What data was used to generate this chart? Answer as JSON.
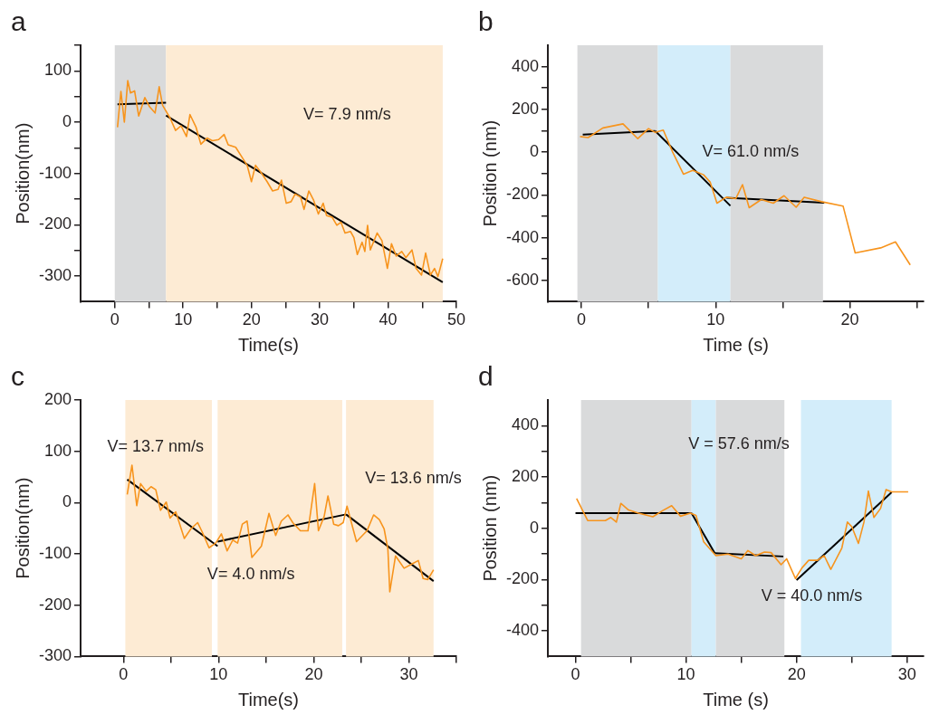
{
  "chart_data": [
    {
      "type": "line",
      "title": "a",
      "xlabel": "Time(s)",
      "ylabel": "Position(nm)",
      "xlim": [
        -5,
        50
      ],
      "ylim": [
        -350,
        150
      ],
      "xticks": [
        0,
        {
          "value": 5,
          "label": null
        },
        10,
        {
          "value": 15,
          "label": null
        },
        20,
        {
          "value": 25,
          "label": null
        },
        30,
        {
          "value": 35,
          "label": null
        },
        40,
        {
          "value": 45,
          "label": null
        },
        50
      ],
      "yticks": [
        {
          "value": 150,
          "label": null
        },
        100,
        {
          "value": 50,
          "label": null
        },
        0,
        {
          "value": -50,
          "label": null
        },
        -100,
        {
          "value": -150,
          "label": null
        },
        -200,
        {
          "value": -250,
          "label": null
        },
        -300
      ],
      "bands": [
        {
          "axis": "x",
          "from": 0,
          "to": 7.5,
          "color": "#d9dadb"
        },
        {
          "axis": "x",
          "from": 7.5,
          "to": 48,
          "color": "#fdebd4"
        }
      ],
      "series": [
        {
          "color": "#f7941d",
          "x": [
            0.4,
            0.9,
            1.4,
            1.9,
            2.3,
            2.9,
            3.5,
            4.4,
            5.1,
            5.9,
            6.5,
            7.0,
            8.1,
            8.9,
            9.7,
            10.5,
            11,
            11.9,
            12.6,
            13.5,
            14.3,
            15.2,
            16,
            16.6,
            17.7,
            18.7,
            19.4,
            20,
            20.6,
            21.4,
            22.3,
            23.1,
            23.9,
            24.4,
            25.1,
            25.8,
            26.4,
            27.2,
            27.7,
            28.4,
            29.1,
            29.8,
            30.5,
            31,
            31.8,
            32.5,
            33.1,
            33.7,
            34.5,
            35,
            35.5,
            36.2,
            36.6,
            37,
            37.4,
            38.4,
            39.1,
            39.9,
            40.5,
            41.2,
            42,
            42.6,
            43.5,
            44.1,
            44.9,
            45.5,
            46.2,
            46.8,
            47.3,
            48
          ],
          "values": [
            -10,
            60,
            0,
            81,
            57,
            61,
            12,
            48,
            30,
            18,
            69,
            33,
            8,
            -16,
            -7,
            -28,
            15,
            -10,
            -43,
            -31,
            -36,
            -34,
            -24,
            -44,
            -49,
            -70,
            -85,
            -116,
            -84,
            -98,
            -116,
            -134,
            -131,
            -113,
            -158,
            -155,
            -140,
            -146,
            -170,
            -134,
            -152,
            -179,
            -158,
            -182,
            -185,
            -201,
            -195,
            -216,
            -213,
            -225,
            -258,
            -234,
            -252,
            -201,
            -249,
            -216,
            -231,
            -285,
            -237,
            -261,
            -252,
            -264,
            -249,
            -285,
            -298,
            -255,
            -298,
            -285,
            -301,
            -266
          ]
        },
        {
          "type": "line",
          "color": "#000000",
          "x": [
            0.4,
            7.5
          ],
          "values": [
            35,
            38
          ]
        },
        {
          "type": "line",
          "color": "#000000",
          "x": [
            7.5,
            48
          ],
          "values": [
            13,
            -312
          ]
        }
      ],
      "annotations": [
        "V= 7.9 nm/s"
      ]
    },
    {
      "type": "line",
      "title": "b",
      "xlabel": "Time (s)",
      "ylabel": "Position (nm)",
      "xlim": [
        -2.5,
        25.5
      ],
      "ylim": [
        -700,
        500
      ],
      "xticks": [
        0,
        {
          "value": 5,
          "label": null
        },
        10,
        {
          "value": 15,
          "label": null
        },
        20,
        {
          "value": 25,
          "label": null
        }
      ],
      "yticks": [
        400,
        {
          "value": 300,
          "label": null
        },
        200,
        {
          "value": 100,
          "label": null
        },
        0,
        {
          "value": -100,
          "label": null
        },
        -200,
        {
          "value": -300,
          "label": null
        },
        -400,
        {
          "value": -500,
          "label": null
        },
        -600
      ],
      "bands": [
        {
          "axis": "x",
          "from": -0.3,
          "to": 5.7,
          "color": "#d9dadb"
        },
        {
          "axis": "x",
          "from": 5.7,
          "to": 11.1,
          "color": "#d3edfa"
        },
        {
          "axis": "x",
          "from": 11.1,
          "to": 18,
          "color": "#d9dadb"
        }
      ],
      "series": [
        {
          "color": "#f7941d",
          "x": [
            -0.1,
            0.5,
            1.6,
            3.1,
            4.2,
            5.0,
            5.5,
            6.1,
            6.8,
            7.6,
            8.3,
            9.1,
            9.6,
            10.1,
            10.8,
            11.5,
            12.0,
            12.5,
            13.4,
            14.3,
            15.1,
            16.0,
            16.6,
            17.9,
            19.5,
            20.4,
            22.3,
            23.4,
            24.5
          ],
          "values": [
            73,
            68,
            113,
            132,
            63,
            110,
            92,
            103,
            0,
            -103,
            -85,
            -106,
            -141,
            -239,
            -211,
            -218,
            -152,
            -260,
            -222,
            -239,
            -204,
            -258,
            -211,
            -232,
            -253,
            -472,
            -448,
            -420,
            -528
          ]
        },
        {
          "type": "line",
          "color": "#000000",
          "x": [
            0.1,
            5.5
          ],
          "values": [
            82,
            99
          ]
        },
        {
          "type": "line",
          "color": "#000000",
          "x": [
            5.5,
            11.1
          ],
          "values": [
            99,
            -251
          ]
        },
        {
          "type": "line",
          "color": "#000000",
          "x": [
            10.8,
            18.1
          ],
          "values": [
            -214,
            -237
          ]
        }
      ],
      "annotations": [
        "V= 61.0 nm/s"
      ]
    },
    {
      "type": "line",
      "title": "c",
      "xlabel": "Time(s)",
      "ylabel": "Position(nm)",
      "xlim": [
        -4.5,
        35
      ],
      "ylim": [
        -300,
        200
      ],
      "xticks": [
        0,
        {
          "value": 5,
          "label": null
        },
        10,
        {
          "value": 15,
          "label": null
        },
        20,
        {
          "value": 25,
          "label": null
        },
        30,
        {
          "value": 35,
          "label": null
        }
      ],
      "yticks": [
        200,
        100,
        0,
        -100,
        -200,
        -300
      ],
      "bands": [
        {
          "axis": "x",
          "from": 0.2,
          "to": 9.3,
          "color": "#fdebd4"
        },
        {
          "axis": "x",
          "from": 9.9,
          "to": 23.0,
          "color": "#fdebd4"
        },
        {
          "axis": "x",
          "from": 23.4,
          "to": 32.6,
          "color": "#fdebd4"
        }
      ],
      "series": [
        {
          "color": "#f7941d",
          "x": [
            0.4,
            0.9,
            1.4,
            1.8,
            2.4,
            2.9,
            3.4,
            3.9,
            4.5,
            4.9,
            5.5,
            6.4,
            7.1,
            7.8,
            8.3,
            9.0,
            9.7,
            10.3,
            10.9,
            11.5,
            12.0,
            12.5,
            13.0,
            13.5,
            14.5,
            15.3,
            16.0,
            16.6,
            17.3,
            17.8,
            18.6,
            19.4,
            20.1,
            20.5,
            21.1,
            21.5,
            22.1,
            22.6,
            23.1,
            23.5,
            24.5,
            25.6,
            26.3,
            26.9,
            27.4,
            27.8,
            28.0,
            28.6,
            29.5,
            30.4,
            31.0,
            31.5,
            32.0,
            32.6
          ],
          "values": [
            16,
            73,
            -6,
            37,
            22,
            31,
            25,
            -15,
            1,
            -30,
            -18,
            -70,
            -51,
            -39,
            -58,
            -88,
            -79,
            -61,
            -94,
            -73,
            -79,
            -42,
            -36,
            -107,
            -85,
            -21,
            -64,
            -36,
            -24,
            -39,
            -55,
            -55,
            37,
            -55,
            -27,
            13,
            -42,
            -45,
            -39,
            -7,
            -76,
            -55,
            -24,
            -33,
            -51,
            -91,
            -174,
            -104,
            -128,
            -119,
            -113,
            -148,
            -150,
            -131
          ]
        },
        {
          "type": "line",
          "color": "#000000",
          "x": [
            0.4,
            9.9
          ],
          "values": [
            45,
            -85
          ]
        },
        {
          "type": "line",
          "color": "#000000",
          "x": [
            9.9,
            23.4
          ],
          "values": [
            -76,
            -23
          ]
        },
        {
          "type": "line",
          "color": "#000000",
          "x": [
            23.4,
            32.6
          ],
          "values": [
            -23,
            -153
          ]
        }
      ],
      "annotations": [
        "V= 13.7 nm/s",
        "V= 13.6 nm/s",
        "V= 4.0 nm/s"
      ]
    },
    {
      "type": "line",
      "title": "d",
      "xlabel": "Time (s)",
      "ylabel": "Position (nm)",
      "xlim": [
        -2.5,
        31.5
      ],
      "ylim": [
        -500,
        500
      ],
      "xticks": [
        0,
        {
          "value": 5,
          "label": null
        },
        10,
        {
          "value": 15,
          "label": null
        },
        20,
        {
          "value": 25,
          "label": null
        },
        30
      ],
      "yticks": [
        400,
        {
          "value": 300,
          "label": null
        },
        200,
        {
          "value": 100,
          "label": null
        },
        0,
        {
          "value": -100,
          "label": null
        },
        -200,
        {
          "value": -300,
          "label": null
        },
        -400
      ],
      "bands": [
        {
          "axis": "x",
          "from": 0.5,
          "to": 10.5,
          "color": "#d9dadb"
        },
        {
          "axis": "x",
          "from": 10.5,
          "to": 12.7,
          "color": "#d3edfa"
        },
        {
          "axis": "x",
          "from": 12.7,
          "to": 18.9,
          "color": "#d9dadb"
        },
        {
          "axis": "x",
          "from": 20.4,
          "to": 28.6,
          "color": "#d3edfa"
        }
      ],
      "series": [
        {
          "color": "#f7941d",
          "x": [
            0.1,
            1.1,
            2.7,
            3.2,
            3.7,
            4.1,
            4.8,
            5.7,
            7.0,
            7.9,
            8.7,
            9.5,
            10.4,
            10.9,
            11.6,
            12.7,
            13.8,
            15.0,
            15.6,
            16.3,
            17.1,
            17.7,
            18.6,
            19.1,
            19.9,
            20.5,
            21.1,
            21.9,
            22.5,
            23.1,
            24.1,
            24.6,
            25.0,
            25.6,
            26.1,
            26.5,
            27.0,
            27.6,
            28.1,
            28.6,
            30.1
          ],
          "values": [
            116,
            30,
            30,
            42,
            24,
            97,
            71,
            59,
            45,
            69,
            88,
            47,
            59,
            50,
            -53,
            -107,
            -101,
            -119,
            -87,
            -107,
            -93,
            -95,
            -142,
            -119,
            -196,
            -154,
            -125,
            -125,
            -107,
            -160,
            -77,
            24,
            6,
            -59,
            24,
            145,
            42,
            77,
            151,
            142,
            142
          ]
        },
        {
          "type": "line",
          "color": "#000000",
          "x": [
            0,
            10.5
          ],
          "values": [
            59,
            59
          ]
        },
        {
          "type": "line",
          "color": "#000000",
          "x": [
            10.5,
            12.6
          ],
          "values": [
            59,
            -97
          ]
        },
        {
          "type": "line",
          "color": "#000000",
          "x": [
            12.6,
            18.8
          ],
          "values": [
            -97,
            -110
          ]
        },
        {
          "type": "line",
          "color": "#000000",
          "x": [
            20,
            28.6
          ],
          "values": [
            -202,
            140
          ]
        }
      ],
      "annotations": [
        "V = 57.6 nm/s",
        "V = 40.0 nm/s"
      ]
    }
  ]
}
